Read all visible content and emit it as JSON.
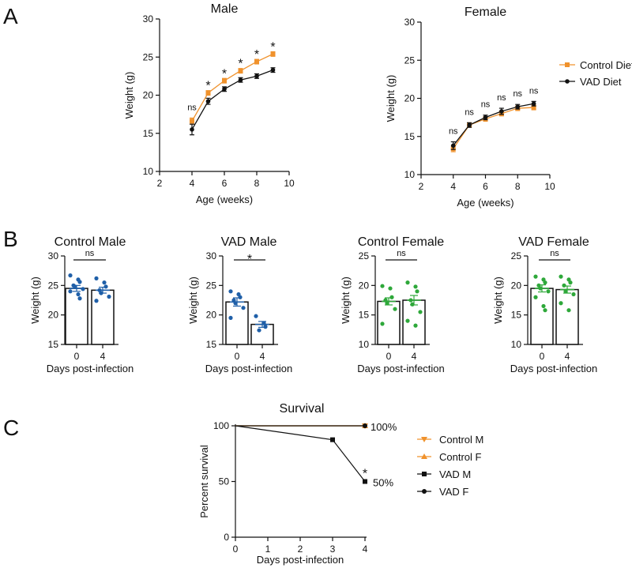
{
  "panels": {
    "a": "A",
    "b": "B",
    "c": "C"
  },
  "chart_data": [
    {
      "id": "male_line",
      "type": "line",
      "title": "Male",
      "xlabel": "Age (weeks)",
      "ylabel": "Weight (g)",
      "xlim": [
        2,
        10
      ],
      "ylim": [
        10,
        30
      ],
      "xticks": [
        2,
        4,
        6,
        8,
        10
      ],
      "yticks": [
        10,
        15,
        20,
        25,
        30
      ],
      "x": [
        4,
        5,
        6,
        7,
        8,
        9
      ],
      "series": [
        {
          "name": "Control Diet",
          "color": "#f0922c",
          "values": [
            16.6,
            20.3,
            21.9,
            23.2,
            24.4,
            25.4
          ],
          "errors": [
            0.4,
            0.3,
            0.3,
            0.3,
            0.3,
            0.3
          ]
        },
        {
          "name": "VAD Diet",
          "color": "#111111",
          "values": [
            15.5,
            19.2,
            20.8,
            22.0,
            22.5,
            23.3
          ],
          "errors": [
            0.7,
            0.4,
            0.3,
            0.3,
            0.3,
            0.3
          ]
        }
      ],
      "annotations": [
        "ns",
        "*",
        "*",
        "*",
        "*",
        "*"
      ]
    },
    {
      "id": "female_line",
      "type": "line",
      "title": "Female",
      "xlabel": "Age (weeks)",
      "ylabel": "Weight (g)",
      "xlim": [
        2,
        10
      ],
      "ylim": [
        10,
        30
      ],
      "xticks": [
        2,
        4,
        6,
        8,
        10
      ],
      "yticks": [
        10,
        15,
        20,
        25,
        30
      ],
      "x": [
        4,
        5,
        6,
        7,
        8,
        9
      ],
      "series": [
        {
          "name": "Control Diet",
          "color": "#f0922c",
          "values": [
            13.4,
            16.5,
            17.3,
            18.0,
            18.7,
            18.8
          ],
          "errors": [
            0.4,
            0.3,
            0.3,
            0.3,
            0.3,
            0.3
          ]
        },
        {
          "name": "VAD Diet",
          "color": "#111111",
          "values": [
            13.8,
            16.5,
            17.5,
            18.3,
            18.9,
            19.3
          ],
          "errors": [
            0.5,
            0.3,
            0.3,
            0.4,
            0.3,
            0.3
          ]
        }
      ],
      "annotations": [
        "ns",
        "ns",
        "ns",
        "ns",
        "ns",
        "ns"
      ]
    },
    {
      "id": "control_male_bar",
      "type": "bar",
      "title": "Control Male",
      "xlabel": "Days post-infection",
      "ylabel": "Weight (g)",
      "categories": [
        "0",
        "4"
      ],
      "ylim": [
        15,
        30
      ],
      "yticks": [
        15,
        20,
        25,
        30
      ],
      "values": [
        24.5,
        24.2
      ],
      "errors": [
        0.5,
        0.5
      ],
      "dot_color": "#1f5fa8",
      "points": [
        [
          26.7,
          26.0,
          25.6,
          25.0,
          24.8,
          24.4,
          24.0,
          23.5,
          22.8
        ],
        [
          26.2,
          25.5,
          24.8,
          24.2,
          23.7,
          23.1,
          22.4
        ]
      ],
      "significance": "ns"
    },
    {
      "id": "vad_male_bar",
      "type": "bar",
      "title": "VAD Male",
      "xlabel": "Days post-infection",
      "ylabel": "Weight (g)",
      "categories": [
        "0",
        "4"
      ],
      "ylim": [
        15,
        30
      ],
      "yticks": [
        15,
        20,
        25,
        30
      ],
      "values": [
        22.2,
        18.4
      ],
      "errors": [
        0.7,
        0.5
      ],
      "dot_color": "#1f5fa8",
      "points": [
        [
          24.0,
          23.5,
          23.0,
          22.5,
          22.0,
          21.2,
          19.5
        ],
        [
          19.8,
          18.6,
          18.0,
          17.4
        ]
      ],
      "significance": "*"
    },
    {
      "id": "control_female_bar",
      "type": "bar",
      "title": "Control Female",
      "xlabel": "Days post-infection",
      "ylabel": "Weight (g)",
      "categories": [
        "0",
        "4"
      ],
      "ylim": [
        10,
        25
      ],
      "yticks": [
        10,
        15,
        20,
        25
      ],
      "values": [
        17.3,
        17.5
      ],
      "errors": [
        0.6,
        0.8
      ],
      "dot_color": "#2ea83a",
      "points": [
        [
          19.9,
          19.5,
          18.0,
          17.5,
          17.0,
          16.0,
          13.5
        ],
        [
          20.5,
          19.8,
          19.0,
          17.5,
          16.8,
          15.5,
          14.0,
          13.2
        ]
      ],
      "significance": "ns"
    },
    {
      "id": "vad_female_bar",
      "type": "bar",
      "title": "VAD Female",
      "xlabel": "Days post-infection",
      "ylabel": "Weight (g)",
      "categories": [
        "0",
        "4"
      ],
      "ylim": [
        10,
        25
      ],
      "yticks": [
        10,
        15,
        20,
        25
      ],
      "values": [
        19.5,
        19.3
      ],
      "errors": [
        0.6,
        0.6
      ],
      "dot_color": "#2ea83a",
      "points": [
        [
          21.5,
          21.0,
          20.5,
          20.0,
          19.5,
          19.0,
          18.0,
          16.5,
          15.8
        ],
        [
          21.5,
          21.0,
          20.5,
          20.0,
          19.0,
          18.5,
          17.0,
          15.8
        ]
      ],
      "significance": "ns"
    },
    {
      "id": "survival",
      "type": "line",
      "title": "Survival",
      "xlabel": "Days post-infection",
      "ylabel": "Percent survival",
      "xlim": [
        0,
        4
      ],
      "ylim": [
        0,
        100
      ],
      "xticks": [
        0,
        1,
        2,
        3,
        4
      ],
      "yticks": [
        0,
        50,
        100
      ],
      "series": [
        {
          "name": "Control M",
          "marker": "tri-down",
          "color": "#f0922c",
          "x": [
            0,
            4
          ],
          "values": [
            100,
            100
          ]
        },
        {
          "name": "Control F",
          "marker": "tri-up",
          "color": "#f0922c",
          "x": [
            0,
            4
          ],
          "values": [
            100,
            100
          ]
        },
        {
          "name": "VAD M",
          "marker": "square",
          "color": "#111111",
          "x": [
            0,
            3,
            4
          ],
          "values": [
            100,
            87.5,
            50
          ]
        },
        {
          "name": "VAD F",
          "marker": "circle",
          "color": "#111111",
          "x": [
            0,
            4
          ],
          "values": [
            100,
            100
          ]
        }
      ],
      "end_labels": [
        "100%",
        "50%"
      ],
      "significance": "*"
    }
  ]
}
